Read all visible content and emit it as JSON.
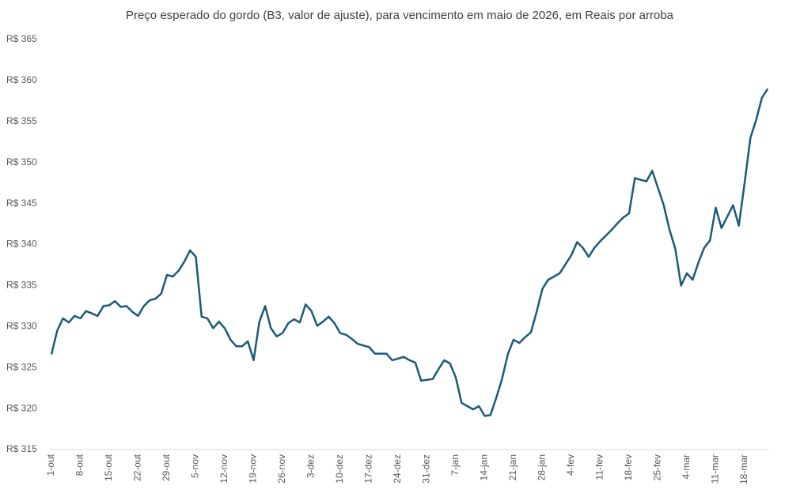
{
  "chart_data": {
    "type": "line",
    "title": "Preço esperado do gordo (B3, valor de ajuste), para vencimento em maio de 2026, em Reais por arroba",
    "categories": [
      "1-out",
      null,
      null,
      null,
      null,
      "8-out",
      null,
      null,
      null,
      null,
      "15-out",
      null,
      null,
      null,
      null,
      "22-out",
      null,
      null,
      null,
      null,
      "29-out",
      null,
      null,
      null,
      null,
      "5-nov",
      null,
      null,
      null,
      null,
      "12-nov",
      null,
      null,
      null,
      null,
      "19-nov",
      null,
      null,
      null,
      null,
      "26-nov",
      null,
      null,
      null,
      null,
      "3-dez",
      null,
      null,
      null,
      null,
      "10-dez",
      null,
      null,
      null,
      null,
      "17-dez",
      null,
      null,
      null,
      null,
      "24-dez",
      null,
      null,
      null,
      null,
      "31-dez",
      null,
      null,
      null,
      null,
      "7-jan",
      null,
      null,
      null,
      null,
      "14-jan",
      null,
      null,
      null,
      null,
      "21-jan",
      null,
      null,
      null,
      null,
      "28-jan",
      null,
      null,
      null,
      null,
      "4-fev",
      null,
      null,
      null,
      null,
      "11-fev",
      null,
      null,
      null,
      null,
      "18-fev",
      null,
      null,
      null,
      null,
      "25-fev",
      null,
      null,
      null,
      null,
      "4-mar",
      null,
      null,
      null,
      null,
      "11-mar",
      null,
      null,
      null,
      null,
      "18-mar",
      null,
      null,
      null,
      null
    ],
    "series": [
      {
        "name": "Preço",
        "color": "#1b5a78",
        "values": [
          326.6,
          329.5,
          331.0,
          330.5,
          331.3,
          331.0,
          331.9,
          331.6,
          331.3,
          332.5,
          332.6,
          333.1,
          332.4,
          332.5,
          331.8,
          331.3,
          332.5,
          333.2,
          333.4,
          334.0,
          336.3,
          336.1,
          336.8,
          337.9,
          339.3,
          338.5,
          331.2,
          331.0,
          329.8,
          330.6,
          329.8,
          328.4,
          327.6,
          327.6,
          328.2,
          325.9,
          330.6,
          332.5,
          329.8,
          328.8,
          329.2,
          330.4,
          330.9,
          330.5,
          332.7,
          331.9,
          330.1,
          330.6,
          331.2,
          330.4,
          329.2,
          329.0,
          328.5,
          327.9,
          327.7,
          327.5,
          326.7,
          326.7,
          326.7,
          325.9,
          326.1,
          326.3,
          325.9,
          325.6,
          323.4,
          323.5,
          323.6,
          324.8,
          325.9,
          325.5,
          323.8,
          320.7,
          320.3,
          319.9,
          320.3,
          319.1,
          319.2,
          321.3,
          323.6,
          326.6,
          328.4,
          328.0,
          328.7,
          329.3,
          331.8,
          334.6,
          335.7,
          336.1,
          336.5,
          337.6,
          338.7,
          340.3,
          339.6,
          338.5,
          339.6,
          340.4,
          341.1,
          341.8,
          342.6,
          343.3,
          343.8,
          348.1,
          347.9,
          347.7,
          349.0,
          346.9,
          344.8,
          341.8,
          339.5,
          335.0,
          336.5,
          335.7,
          337.8,
          339.6,
          340.5,
          344.5,
          342.0,
          343.4,
          344.8,
          342.3,
          347.5,
          353.0,
          355.2,
          357.9,
          359.0
        ]
      }
    ],
    "ylim": [
      315,
      365
    ],
    "yticks": [
      {
        "value": 315,
        "label": "R$ 315"
      },
      {
        "value": 320,
        "label": "R$ 320"
      },
      {
        "value": 325,
        "label": "R$ 325"
      },
      {
        "value": 330,
        "label": "R$ 330"
      },
      {
        "value": 335,
        "label": "R$ 335"
      },
      {
        "value": 340,
        "label": "R$ 340"
      },
      {
        "value": 345,
        "label": "R$ 345"
      },
      {
        "value": 350,
        "label": "R$ 350"
      },
      {
        "value": 355,
        "label": "R$ 355"
      },
      {
        "value": 360,
        "label": "R$ 360"
      },
      {
        "value": 365,
        "label": "R$ 365"
      }
    ],
    "grid": false
  }
}
